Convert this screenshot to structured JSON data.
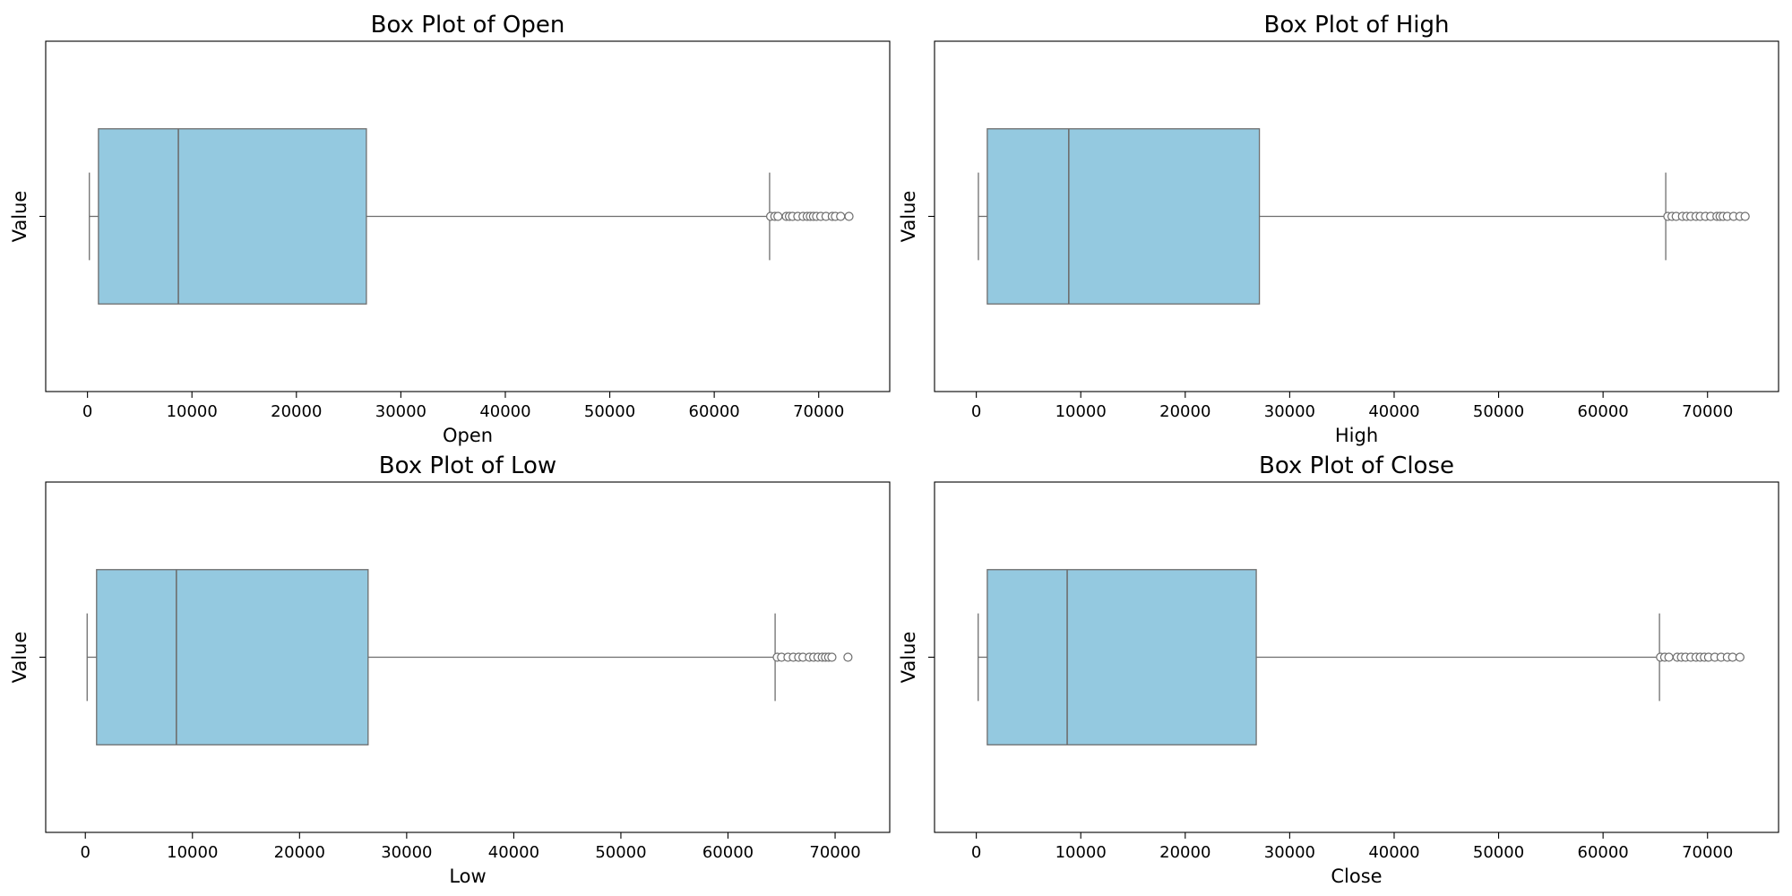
{
  "chart_data": [
    {
      "type": "box",
      "title": "Box Plot of Open",
      "xlabel": "Open",
      "ylabel": "Value",
      "xlim": [
        -4000,
        76800
      ],
      "xticks": [
        0,
        10000,
        20000,
        30000,
        40000,
        50000,
        60000,
        70000
      ],
      "tick_labels": [
        "0",
        "10000",
        "20000",
        "30000",
        "40000",
        "50000",
        "60000",
        "70000"
      ],
      "box_color": "#94c9e0",
      "stats": {
        "whisker_low": 180,
        "q1": 1050,
        "median": 8700,
        "q3": 26700,
        "whisker_high": 65300
      },
      "outliers": [
        65400,
        65800,
        66100,
        66900,
        67200,
        67500,
        68000,
        68500,
        68900,
        69200,
        69500,
        69800,
        70200,
        70700,
        71300,
        71600,
        72100,
        72900
      ]
    },
    {
      "type": "box",
      "title": "Box Plot of High",
      "xlabel": "High",
      "ylabel": "Value",
      "xlim": [
        -4000,
        76800
      ],
      "xticks": [
        0,
        10000,
        20000,
        30000,
        40000,
        50000,
        60000,
        70000
      ],
      "tick_labels": [
        "0",
        "10000",
        "20000",
        "30000",
        "40000",
        "50000",
        "60000",
        "70000"
      ],
      "box_color": "#94c9e0",
      "stats": {
        "whisker_low": 200,
        "q1": 1050,
        "median": 8850,
        "q3": 27100,
        "whisker_high": 66000
      },
      "outliers": [
        66200,
        66600,
        67000,
        67600,
        68000,
        68400,
        68900,
        69300,
        69800,
        70300,
        70900,
        71200,
        71500,
        71900,
        72500,
        73100,
        73600
      ]
    },
    {
      "type": "box",
      "title": "Box Plot of Low",
      "xlabel": "Low",
      "ylabel": "Value",
      "xlim": [
        -3700,
        75100
      ],
      "xticks": [
        0,
        10000,
        20000,
        30000,
        40000,
        50000,
        60000,
        70000
      ],
      "tick_labels": [
        "0",
        "10000",
        "20000",
        "30000",
        "40000",
        "50000",
        "60000",
        "70000"
      ],
      "box_color": "#94c9e0",
      "stats": {
        "whisker_low": 170,
        "q1": 1050,
        "median": 8500,
        "q3": 26400,
        "whisker_high": 64400
      },
      "outliers": [
        64600,
        65000,
        65600,
        66100,
        66600,
        67000,
        67600,
        68000,
        68400,
        68800,
        69100,
        69400,
        69700,
        71200
      ]
    },
    {
      "type": "box",
      "title": "Box Plot of Close",
      "xlabel": "Close",
      "ylabel": "Value",
      "xlim": [
        -4000,
        76800
      ],
      "xticks": [
        0,
        10000,
        20000,
        30000,
        40000,
        50000,
        60000,
        70000
      ],
      "tick_labels": [
        "0",
        "10000",
        "20000",
        "30000",
        "40000",
        "50000",
        "60000",
        "70000"
      ],
      "box_color": "#94c9e0",
      "stats": {
        "whisker_low": 180,
        "q1": 1050,
        "median": 8700,
        "q3": 26800,
        "whisker_high": 65400
      },
      "outliers": [
        65500,
        65900,
        66300,
        67100,
        67500,
        67900,
        68400,
        68900,
        69300,
        69700,
        70100,
        70700,
        71300,
        71900,
        72400,
        73100
      ]
    }
  ]
}
